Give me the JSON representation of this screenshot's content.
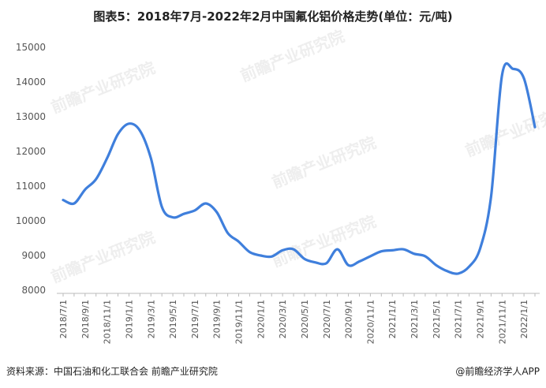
{
  "title": "图表5：2018年7月-2022年2月中国氟化铝价格走势(单位：元/吨)",
  "source_text": "资料来源：中国石油和化工联合会 前瞻产业研究院",
  "brand_text": "@前瞻经济学人APP",
  "watermark_text": "前瞻产业研究院",
  "colors": {
    "line": "#3f7fdc",
    "axis": "#bbbbbb",
    "text": "#555555"
  },
  "chart_data": {
    "type": "line",
    "title": "图表5：2018年7月-2022年2月中国氟化铝价格走势(单位：元/吨)",
    "xlabel": "",
    "ylabel": "",
    "ylim": [
      8000,
      15000
    ],
    "yticks": [
      8000,
      9000,
      10000,
      11000,
      12000,
      13000,
      14000,
      15000
    ],
    "grid": false,
    "x": [
      "2018/7/1",
      "2018/8/1",
      "2018/9/1",
      "2018/10/1",
      "2018/11/1",
      "2018/12/1",
      "2019/1/1",
      "2019/2/1",
      "2019/3/1",
      "2019/4/1",
      "2019/5/1",
      "2019/6/1",
      "2019/7/1",
      "2019/8/1",
      "2019/9/1",
      "2019/10/1",
      "2019/11/1",
      "2019/12/1",
      "2020/1/1",
      "2020/2/1",
      "2020/3/1",
      "2020/4/1",
      "2020/5/1",
      "2020/6/1",
      "2020/7/1",
      "2020/8/1",
      "2020/9/1",
      "2020/10/1",
      "2020/11/1",
      "2020/12/1",
      "2021/1/1",
      "2021/2/1",
      "2021/3/1",
      "2021/4/1",
      "2021/5/1",
      "2021/6/1",
      "2021/7/1",
      "2021/8/1",
      "2021/9/1",
      "2021/10/1",
      "2021/11/1",
      "2021/12/1",
      "2022/1/1",
      "2022/2/1"
    ],
    "x_tick_labels": [
      "2018/7/1",
      "2018/9/1",
      "2018/11/1",
      "2019/1/1",
      "2019/3/1",
      "2019/5/1",
      "2019/7/1",
      "2019/9/1",
      "2019/11/1",
      "2020/1/1",
      "2020/3/1",
      "2020/5/1",
      "2020/7/1",
      "2020/9/1",
      "2020/11/1",
      "2021/1/1",
      "2021/3/1",
      "2021/5/1",
      "2021/7/1",
      "2021/9/1",
      "2021/11/1",
      "2022/1/1"
    ],
    "series": [
      {
        "name": "",
        "values": [
          10600,
          10500,
          10900,
          11200,
          11800,
          12500,
          12800,
          12600,
          11800,
          10400,
          10100,
          10200,
          10300,
          10500,
          10250,
          9650,
          9400,
          9100,
          9000,
          8970,
          9150,
          9180,
          8900,
          8800,
          8780,
          9180,
          8720,
          8830,
          8980,
          9120,
          9150,
          9180,
          9050,
          8980,
          8720,
          8550,
          8480,
          8680,
          9200,
          10700,
          14200,
          14380,
          14100,
          12700
        ]
      }
    ]
  }
}
